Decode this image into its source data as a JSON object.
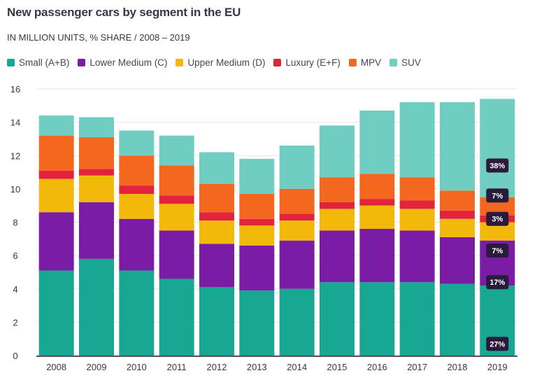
{
  "chart_data": {
    "type": "bar",
    "stacked": true,
    "title": "New passenger cars by segment in the EU",
    "subtitle": "IN MILLION UNITS, % SHARE / 2008 – 2019",
    "xlabel": "",
    "ylabel": "",
    "ylim": [
      0,
      16
    ],
    "yticks": [
      0,
      2,
      4,
      6,
      8,
      10,
      12,
      14,
      16
    ],
    "grid": true,
    "legend_position": "top-left",
    "categories": [
      "2008",
      "2009",
      "2010",
      "2011",
      "2012",
      "2013",
      "2014",
      "2015",
      "2016",
      "2017",
      "2018",
      "2019"
    ],
    "series": [
      {
        "name": "Small (A+B)",
        "color": "#17a793",
        "values": [
          5.1,
          5.8,
          5.1,
          4.6,
          4.1,
          3.9,
          4.0,
          4.4,
          4.4,
          4.4,
          4.3,
          4.2
        ]
      },
      {
        "name": "Lower Medium (C)",
        "color": "#7a1ca6",
        "values": [
          3.5,
          3.4,
          3.1,
          2.9,
          2.6,
          2.7,
          2.9,
          3.1,
          3.2,
          3.1,
          2.8,
          2.7
        ]
      },
      {
        "name": "Upper Medium (D)",
        "color": "#f2b90a",
        "values": [
          2.0,
          1.6,
          1.5,
          1.6,
          1.4,
          1.2,
          1.2,
          1.3,
          1.4,
          1.3,
          1.1,
          1.1
        ]
      },
      {
        "name": "Luxury (E+F)",
        "color": "#e3223c",
        "values": [
          0.5,
          0.4,
          0.5,
          0.5,
          0.5,
          0.4,
          0.4,
          0.4,
          0.4,
          0.5,
          0.5,
          0.4
        ]
      },
      {
        "name": "MPV",
        "color": "#f4671f",
        "values": [
          2.1,
          1.9,
          1.8,
          1.8,
          1.7,
          1.5,
          1.5,
          1.5,
          1.5,
          1.4,
          1.2,
          1.1
        ]
      },
      {
        "name": "SUV",
        "color": "#6fcdc2",
        "values": [
          1.2,
          1.2,
          1.5,
          1.8,
          1.9,
          2.1,
          2.6,
          3.1,
          3.8,
          4.5,
          5.3,
          5.9
        ]
      }
    ],
    "data_labels": [
      {
        "category": "2019",
        "series": "Small (A+B)",
        "text": "27%"
      },
      {
        "category": "2019",
        "series": "Lower Medium (C)",
        "text": "17%"
      },
      {
        "category": "2019",
        "series": "Upper Medium (D)",
        "text": "7%"
      },
      {
        "category": "2019",
        "series": "Luxury (E+F)",
        "text": "3%"
      },
      {
        "category": "2019",
        "series": "MPV",
        "text": "7%"
      },
      {
        "category": "2019",
        "series": "SUV",
        "text": "38%"
      }
    ]
  }
}
